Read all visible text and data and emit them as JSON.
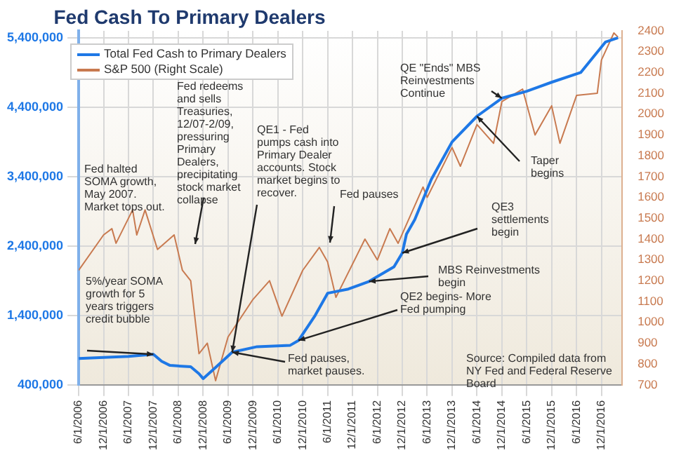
{
  "chart_data": {
    "type": "line",
    "title": "Fed Cash To Primary Dealers",
    "xlim": [
      "2006-06-01",
      "2017-05-01"
    ],
    "xticks": [
      {
        "value": "2006-06-01",
        "label": "6/1/2006"
      },
      {
        "value": "2006-12-01",
        "label": "12/1/2006"
      },
      {
        "value": "2007-06-01",
        "label": "6/1/2007"
      },
      {
        "value": "2007-12-01",
        "label": "12/1/2007"
      },
      {
        "value": "2008-06-01",
        "label": "6/1/2008"
      },
      {
        "value": "2008-12-01",
        "label": "12/1/2008"
      },
      {
        "value": "2009-06-01",
        "label": "6/1/2009"
      },
      {
        "value": "2009-12-01",
        "label": "12/1/2009"
      },
      {
        "value": "2010-06-01",
        "label": "6/1/2010"
      },
      {
        "value": "2010-12-01",
        "label": "12/1/2010"
      },
      {
        "value": "2011-06-01",
        "label": "6/1/2011"
      },
      {
        "value": "2011-12-01",
        "label": "12/1/2011"
      },
      {
        "value": "2012-06-01",
        "label": "6/1/2012"
      },
      {
        "value": "2012-12-01",
        "label": "12/1/2012"
      },
      {
        "value": "2013-06-01",
        "label": "6/1/2013"
      },
      {
        "value": "2013-12-01",
        "label": "12/1/2013"
      },
      {
        "value": "2014-06-01",
        "label": "6/1/2014"
      },
      {
        "value": "2014-12-01",
        "label": "12/1/2014"
      },
      {
        "value": "2015-06-01",
        "label": "6/1/2015"
      },
      {
        "value": "2015-12-01",
        "label": "12/1/2015"
      },
      {
        "value": "2016-06-01",
        "label": "6/1/2016"
      },
      {
        "value": "2016-12-01",
        "label": "12/1/2016"
      }
    ],
    "ylim": [
      400000,
      5500000
    ],
    "yticks": [
      {
        "value": 400000,
        "label": "400,000"
      },
      {
        "value": 1400000,
        "label": "1,400,000"
      },
      {
        "value": 2400000,
        "label": "2,400,000"
      },
      {
        "value": 3400000,
        "label": "3,400,000"
      },
      {
        "value": 4400000,
        "label": "4,400,000"
      },
      {
        "value": 5400000,
        "label": "5,400,000"
      }
    ],
    "y2lim": [
      700,
      2400
    ],
    "y2ticks": [
      700,
      800,
      900,
      1000,
      1100,
      1200,
      1300,
      1400,
      1500,
      1600,
      1700,
      1800,
      1900,
      2000,
      2100,
      2200,
      2300,
      2400
    ],
    "grid": true,
    "legend": "top left",
    "marker": "none",
    "series": [
      {
        "name": "Total Fed Cash to Primary Dealers",
        "color": "#1e78e6",
        "x": [
          "2006-06",
          "2007-06",
          "2007-12",
          "2008-02",
          "2008-04",
          "2008-09",
          "2008-11",
          "2008-12",
          "2009-03",
          "2009-07",
          "2010-01",
          "2010-09",
          "2010-11",
          "2011-03",
          "2011-06",
          "2011-11",
          "2012-04",
          "2012-10",
          "2012-12",
          "2013-01",
          "2013-03",
          "2013-07",
          "2013-12",
          "2014-06",
          "2014-12",
          "2015-06",
          "2015-12",
          "2016-07",
          "2017-01",
          "2017-04"
        ],
        "values": [
          780000,
          810000,
          840000,
          740000,
          680000,
          660000,
          560000,
          490000,
          650000,
          870000,
          950000,
          970000,
          1040000,
          1400000,
          1720000,
          1780000,
          1890000,
          2100000,
          2300000,
          2570000,
          2780000,
          3360000,
          3900000,
          4270000,
          4530000,
          4630000,
          4760000,
          4900000,
          5340000,
          5400000
        ]
      },
      {
        "name": "S&P 500 (Right Scale)",
        "color": "#c87a50",
        "axis": "y2",
        "x": [
          "2006-06",
          "2006-12",
          "2007-02",
          "2007-03",
          "2007-07",
          "2007-08",
          "2007-10",
          "2008-01",
          "2008-05",
          "2008-07",
          "2008-09",
          "2008-11",
          "2009-01",
          "2009-03",
          "2009-06",
          "2009-12",
          "2010-04",
          "2010-07",
          "2010-12",
          "2011-04",
          "2011-06",
          "2011-08",
          "2011-10",
          "2012-03",
          "2012-06",
          "2012-09",
          "2012-11",
          "2013-05",
          "2013-06",
          "2013-12",
          "2014-02",
          "2014-06",
          "2014-10",
          "2014-12",
          "2015-05",
          "2015-08",
          "2015-12",
          "2016-02",
          "2016-06",
          "2016-11",
          "2016-12",
          "2017-03",
          "2017-04"
        ],
        "values": [
          1250,
          1420,
          1450,
          1380,
          1540,
          1420,
          1540,
          1350,
          1420,
          1250,
          1200,
          850,
          900,
          720,
          930,
          1110,
          1200,
          1030,
          1250,
          1360,
          1290,
          1120,
          1200,
          1400,
          1300,
          1450,
          1380,
          1650,
          1600,
          1840,
          1750,
          1950,
          1860,
          2060,
          2120,
          1900,
          2040,
          1860,
          2090,
          2100,
          2260,
          2390,
          2370
        ]
      }
    ],
    "annotations": [
      "Fed halted SOMA growth, May 2007. Market tops out.",
      {
        "text": "5%/year SOMA growth for 5 years triggers credit bubble",
        "x": "2007-12",
        "y": 840000
      },
      "Fed redeems and sells Treasuries, 12/07-2/09, pressuring Primary Dealers, precipitating stock market collapse",
      {
        "text": "QE1 - Fed pumps cash into Primary Dealer accounts. Stock market begins to recover.",
        "x": "2009-07",
        "y": 870000
      },
      {
        "text": "Fed pauses, market pauses.",
        "x": "2009-07",
        "y": 870000
      },
      "Fed pauses",
      {
        "text": "QE3 settlements begin",
        "x": "2012-12",
        "y": 2300000
      },
      {
        "text": "MBS Reinvestments begin",
        "x": "2012-04",
        "y": 1890000
      },
      {
        "text": "QE2 begins- More Fed pumping",
        "x": "2010-11",
        "y": 1040000
      },
      {
        "text": "QE \"Ends\" MBS Reinvestments Continue",
        "x": "2014-12",
        "y": 4530000
      },
      {
        "text": "Taper begins",
        "x": "2014-06",
        "y": 4270000
      },
      "Source: Compiled data from NY Fed and Federal Reserve Board"
    ]
  }
}
